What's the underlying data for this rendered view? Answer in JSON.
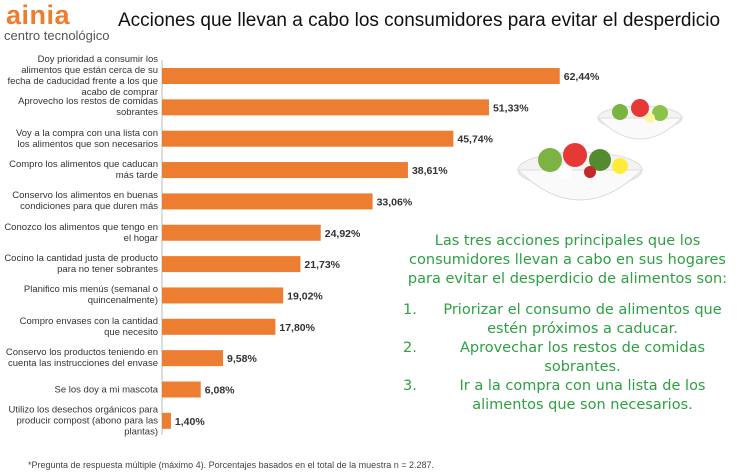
{
  "chart_data": {
    "type": "bar",
    "orientation": "horizontal",
    "logo": {
      "brand": "ainia",
      "tagline": "centro tecnológico"
    },
    "title": "Acciones que llevan a cabo los consumidores para evitar el desperdicio",
    "categories": [
      "Doy prioridad a consumir los alimentos que están cerca de su fecha de caducidad frente a los que acabo de comprar",
      "Aprovecho los restos de comidas sobrantes",
      "Voy a la compra con una lista con los alimentos que son necesarios",
      "Compro los alimentos que caducan más tarde",
      "Conservo los alimentos en buenas condiciones para que duren más",
      "Conozco los alimentos que tengo en el hogar",
      "Cocino la cantidad justa de producto para no tener sobrantes",
      "Planifico mis menús (semanal o quincenalmente)",
      "Compro envases con la cantidad que necesito",
      "Conservo los productos teniendo en cuenta las instrucciones del envase",
      "Se los doy a mi mascota",
      "Utilizo los desechos orgánicos para producir compost (abono para las plantas)"
    ],
    "values": [
      62.44,
      51.33,
      45.74,
      38.61,
      33.06,
      24.92,
      21.73,
      19.02,
      17.8,
      9.58,
      6.08,
      1.4
    ],
    "value_labels": [
      "62,44%",
      "51,33%",
      "45,74%",
      "38,61%",
      "33,06%",
      "24,92%",
      "21,73%",
      "19,02%",
      "17,80%",
      "9,58%",
      "6,08%",
      "1,40%"
    ],
    "color": "#ed7d31",
    "annotation": {
      "intro": "Las tres acciones principales que los consumidores llevan a cabo en sus hogares para evitar el desperdicio de alimentos son:",
      "items": [
        {
          "number": "1.",
          "text": "Priorizar el consumo de alimentos que estén próximos a caducar."
        },
        {
          "number": "2.",
          "text": "Aprovechar los restos de comidas sobrantes."
        },
        {
          "number": "3.",
          "text": "Ir a la compra con una lista de los alimentos que son necesarios."
        }
      ]
    },
    "footnote": "*Pregunta de respuesta múltiple (máximo 4). Porcentajes basados en el total de la muestra n = 2.287."
  }
}
